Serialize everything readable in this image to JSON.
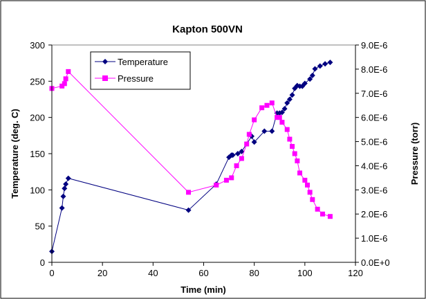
{
  "chart_data": {
    "type": "line",
    "title": "Kapton 500VN",
    "xlabel": "Time (min)",
    "ylabel": "Temperature (deg. C)",
    "y2label": "Pressure (torr)",
    "xlim": [
      0,
      120
    ],
    "ylim": [
      0,
      300
    ],
    "y2lim": [
      0,
      9e-06
    ],
    "xticks": [
      "0",
      "20",
      "40",
      "60",
      "80",
      "100",
      "120"
    ],
    "yticks": [
      "0",
      "50",
      "100",
      "150",
      "200",
      "250",
      "300"
    ],
    "y2ticks": [
      "0.0E+0",
      "1.0E-6",
      "2.0E-6",
      "3.0E-6",
      "4.0E-6",
      "5.0E-6",
      "6.0E-6",
      "7.0E-6",
      "8.0E-6",
      "9.0E-6"
    ],
    "grid": false,
    "legend_position": "top-left",
    "series": [
      {
        "name": "Temperature",
        "axis": "left",
        "color": "#000080",
        "marker": "diamond",
        "x": [
          0,
          4,
          4.5,
          5,
          5.5,
          6.5,
          54,
          65,
          70,
          71,
          71.5,
          73.5,
          75,
          79,
          80,
          84,
          87,
          89,
          90,
          91,
          92,
          93,
          94,
          95,
          96,
          97,
          98,
          99,
          100,
          102,
          103,
          104,
          106,
          108,
          110
        ],
        "y": [
          15,
          75,
          91,
          102,
          108,
          116,
          72,
          108,
          145,
          148,
          148,
          150,
          153,
          174,
          166,
          181,
          181,
          206,
          206,
          207,
          212,
          220,
          225,
          231,
          240,
          244,
          243,
          243,
          247,
          253,
          258,
          267,
          271,
          274,
          276
        ]
      },
      {
        "name": "Pressure",
        "axis": "right",
        "color": "#ff00ff",
        "marker": "square",
        "x": [
          0,
          4,
          5,
          5.5,
          6.5,
          54,
          65,
          69,
          71,
          73,
          75,
          77,
          78,
          80,
          83,
          85,
          87,
          89,
          90,
          91,
          93,
          94,
          95,
          96,
          97,
          98,
          100,
          101,
          102,
          103,
          105,
          107,
          110
        ],
        "y": [
          7.2e-06,
          7.3e-06,
          7.4e-06,
          7.6e-06,
          7.9e-06,
          2.9e-06,
          3.2e-06,
          3.4e-06,
          3.5e-06,
          4e-06,
          4.3e-06,
          4.9e-06,
          5.3e-06,
          5.9e-06,
          6.4e-06,
          6.5e-06,
          6.6e-06,
          6e-06,
          6e-06,
          5.8e-06,
          5.5e-06,
          5.1e-06,
          4.8e-06,
          4.5e-06,
          4.2e-06,
          3.7e-06,
          3.4e-06,
          3.2e-06,
          2.9e-06,
          2.6e-06,
          2.2e-06,
          2e-06,
          1.9e-06
        ]
      }
    ]
  }
}
